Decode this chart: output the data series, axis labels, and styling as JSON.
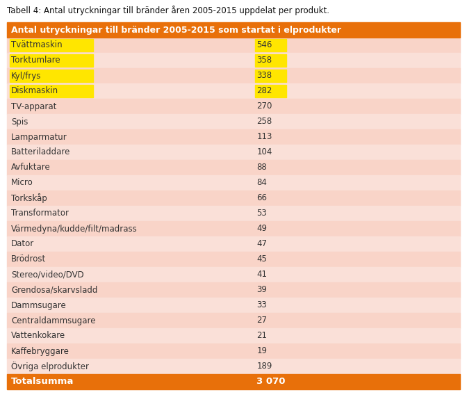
{
  "title": "Tabell 4: Antal utryckningar till bränder åren 2005-2015 uppdelat per produkt.",
  "header_text": "Antal utryckningar till bränder 2005-2015 som startat i elprodukter",
  "header_bg": "#E8700A",
  "header_text_color": "#FFFFFF",
  "rows": [
    {
      "label": "Tvättmaskin",
      "value": "546",
      "highlight": true,
      "row_bg": "#F9D4C8"
    },
    {
      "label": "Torktumlare",
      "value": "358",
      "highlight": true,
      "row_bg": "#FAE0D8"
    },
    {
      "label": "Kyl/frys",
      "value": "338",
      "highlight": true,
      "row_bg": "#F9D4C8"
    },
    {
      "label": "Diskmaskin",
      "value": "282",
      "highlight": true,
      "row_bg": "#FAE0D8"
    },
    {
      "label": "TV-apparat",
      "value": "270",
      "highlight": false,
      "row_bg": "#F9D4C8"
    },
    {
      "label": "Spis",
      "value": "258",
      "highlight": false,
      "row_bg": "#FAE0D8"
    },
    {
      "label": "Lamparmatur",
      "value": "113",
      "highlight": false,
      "row_bg": "#F9D4C8"
    },
    {
      "label": "Batteriladdare",
      "value": "104",
      "highlight": false,
      "row_bg": "#FAE0D8"
    },
    {
      "label": "Avfuktare",
      "value": "88",
      "highlight": false,
      "row_bg": "#F9D4C8"
    },
    {
      "label": "Micro",
      "value": "84",
      "highlight": false,
      "row_bg": "#FAE0D8"
    },
    {
      "label": "Torkskåp",
      "value": "66",
      "highlight": false,
      "row_bg": "#F9D4C8"
    },
    {
      "label": "Transformator",
      "value": "53",
      "highlight": false,
      "row_bg": "#FAE0D8"
    },
    {
      "label": "Värmedyna/kudde/filt/madrass",
      "value": "49",
      "highlight": false,
      "row_bg": "#F9D4C8"
    },
    {
      "label": "Dator",
      "value": "47",
      "highlight": false,
      "row_bg": "#FAE0D8"
    },
    {
      "label": "Brödrost",
      "value": "45",
      "highlight": false,
      "row_bg": "#F9D4C8"
    },
    {
      "label": "Stereo/video/DVD",
      "value": "41",
      "highlight": false,
      "row_bg": "#FAE0D8"
    },
    {
      "label": "Grendosa/skarvsladd",
      "value": "39",
      "highlight": false,
      "row_bg": "#F9D4C8"
    },
    {
      "label": "Dammsugare",
      "value": "33",
      "highlight": false,
      "row_bg": "#FAE0D8"
    },
    {
      "label": "Centraldammsugare",
      "value": "27",
      "highlight": false,
      "row_bg": "#F9D4C8"
    },
    {
      "label": "Vattenkokare",
      "value": "21",
      "highlight": false,
      "row_bg": "#FAE0D8"
    },
    {
      "label": "Kaffebryggare",
      "value": "19",
      "highlight": false,
      "row_bg": "#F9D4C8"
    },
    {
      "label": "Övriga elprodukter",
      "value": "189",
      "highlight": false,
      "row_bg": "#FAE0D8"
    }
  ],
  "footer_label": "Totalsumma",
  "footer_value": "3 070",
  "footer_bg": "#E8700A",
  "footer_text_color": "#FFFFFF",
  "highlight_color": "#FFE600",
  "text_color": "#333333",
  "title_fontsize": 8.5,
  "header_fontsize": 9.0,
  "row_fontsize": 8.5,
  "footer_fontsize": 9.5,
  "fig_width": 6.72,
  "fig_height": 5.81,
  "fig_dpi": 100
}
